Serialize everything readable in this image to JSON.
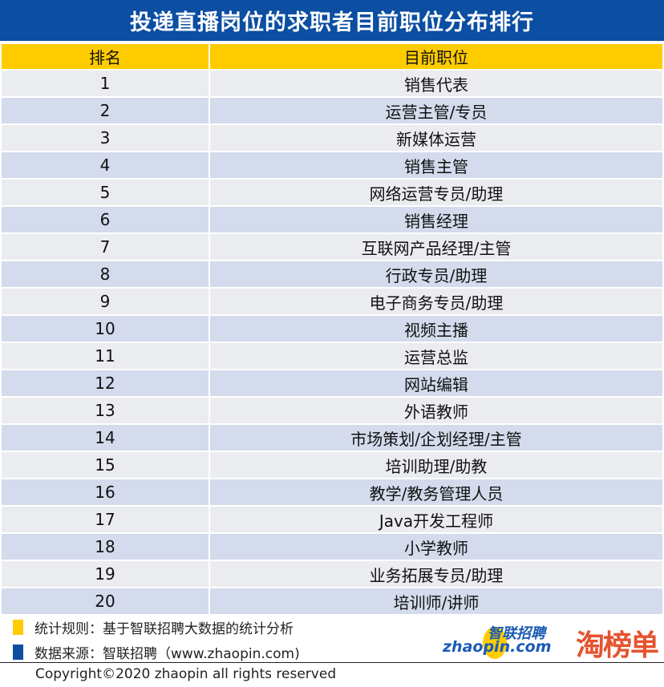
{
  "title": "投递直播岗位的求职者目前职位分布排行",
  "chart_data": {
    "type": "table",
    "title": "投递直播岗位的求职者目前职位分布排行",
    "columns": [
      "排名",
      "目前职位"
    ],
    "rows": [
      [
        "1",
        "销售代表"
      ],
      [
        "2",
        "运营主管/专员"
      ],
      [
        "3",
        "新媒体运营"
      ],
      [
        "4",
        "销售主管"
      ],
      [
        "5",
        "网络运营专员/助理"
      ],
      [
        "6",
        "销售经理"
      ],
      [
        "7",
        "互联网产品经理/主管"
      ],
      [
        "8",
        "行政专员/助理"
      ],
      [
        "9",
        "电子商务专员/助理"
      ],
      [
        "10",
        "视频主播"
      ],
      [
        "11",
        "运营总监"
      ],
      [
        "12",
        "网站编辑"
      ],
      [
        "13",
        "外语教师"
      ],
      [
        "14",
        "市场策划/企划经理/主管"
      ],
      [
        "15",
        "培训助理/助教"
      ],
      [
        "16",
        "教学/教务管理人员"
      ],
      [
        "17",
        "Java开发工程师"
      ],
      [
        "18",
        "小学教师"
      ],
      [
        "19",
        "业务拓展专员/助理"
      ],
      [
        "20",
        "培训师/讲师"
      ]
    ]
  },
  "footer": {
    "rule": "统计规则：基于智联招聘大数据的统计分析",
    "source": "数据来源：智联招聘（www.zhaopin.com)",
    "copyright": "Copyright©2020 zhaopin all rights reserved",
    "logo_zhaopin_cn": "智联招聘",
    "logo_zhaopin_en": "zhaopin.com",
    "logo_taobangdan": "淘榜单"
  },
  "colors": {
    "title_bg": "#0b4ea2",
    "header_bg": "#ffcc00",
    "row_odd": "#ebecf0",
    "row_even": "#d3dbec",
    "logo_red": "#e5532f"
  }
}
